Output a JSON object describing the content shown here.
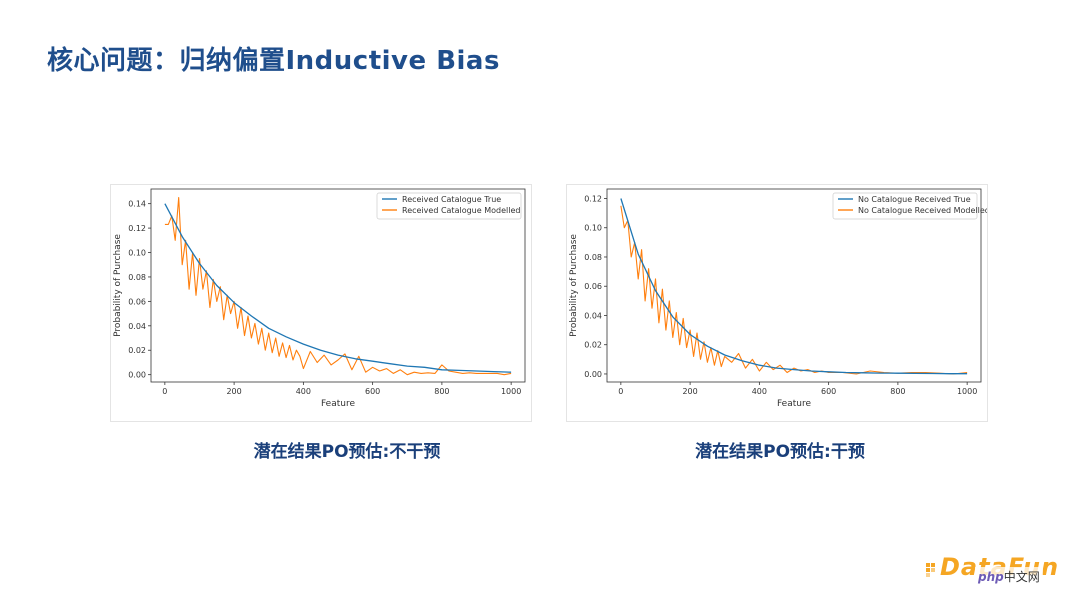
{
  "slide": {
    "title": "核心问题：归纳偏置Inductive Bias",
    "caption_left": "潜在结果PO预估:不干预",
    "caption_right": "潜在结果PO预估:干预",
    "logo_text": "DataFun",
    "watermark_php": "php",
    "watermark_cn": "中文网"
  },
  "colors": {
    "true_series": "#1f77b4",
    "modelled_series": "#ff7f0e",
    "title": "#1f4e8c",
    "caption": "#1a3f7a",
    "logo": "#f5a623"
  },
  "chart_data": [
    {
      "type": "line",
      "xlabel": "Feature",
      "ylabel": "Probability of Purchase",
      "xlim": [
        -40,
        1040
      ],
      "ylim": [
        -0.006,
        0.152
      ],
      "xticks": [
        0,
        200,
        400,
        600,
        800,
        1000
      ],
      "yticks": [
        0.0,
        0.02,
        0.04,
        0.06,
        0.08,
        0.1,
        0.12,
        0.14
      ],
      "ytick_labels": [
        "0.00",
        "0.02",
        "0.04",
        "0.06",
        "0.08",
        "0.10",
        "0.12",
        "0.14"
      ],
      "legend_position": "top-right",
      "series": [
        {
          "name": "Received Catalogue True",
          "color": "#1f77b4",
          "x": [
            0,
            50,
            100,
            150,
            200,
            250,
            300,
            350,
            400,
            450,
            500,
            550,
            600,
            650,
            700,
            750,
            800,
            850,
            900,
            950,
            1000
          ],
          "y": [
            0.14,
            0.113,
            0.091,
            0.073,
            0.059,
            0.048,
            0.038,
            0.031,
            0.025,
            0.02,
            0.016,
            0.013,
            0.011,
            0.009,
            0.007,
            0.006,
            0.004,
            0.0035,
            0.003,
            0.0025,
            0.002
          ]
        },
        {
          "name": "Received Catalogue Modelled",
          "color": "#ff7f0e",
          "x": [
            0,
            10,
            20,
            30,
            40,
            50,
            60,
            70,
            80,
            90,
            100,
            110,
            120,
            130,
            140,
            150,
            160,
            170,
            180,
            190,
            200,
            210,
            220,
            230,
            240,
            250,
            260,
            270,
            280,
            290,
            300,
            310,
            320,
            330,
            340,
            350,
            360,
            370,
            380,
            390,
            400,
            420,
            440,
            460,
            480,
            500,
            520,
            540,
            560,
            580,
            600,
            620,
            640,
            660,
            680,
            700,
            720,
            740,
            760,
            780,
            800,
            820,
            840,
            860,
            880,
            900,
            920,
            940,
            960,
            980,
            1000
          ],
          "y": [
            0.123,
            0.123,
            0.13,
            0.11,
            0.145,
            0.09,
            0.11,
            0.07,
            0.1,
            0.065,
            0.095,
            0.07,
            0.085,
            0.055,
            0.078,
            0.06,
            0.072,
            0.045,
            0.065,
            0.05,
            0.06,
            0.038,
            0.055,
            0.032,
            0.048,
            0.03,
            0.042,
            0.025,
            0.038,
            0.02,
            0.034,
            0.018,
            0.03,
            0.015,
            0.026,
            0.014,
            0.024,
            0.012,
            0.02,
            0.015,
            0.005,
            0.019,
            0.01,
            0.016,
            0.008,
            0.012,
            0.017,
            0.004,
            0.015,
            0.002,
            0.006,
            0.003,
            0.005,
            0.001,
            0.004,
            0.0,
            0.002,
            0.001,
            0.0015,
            0.001,
            0.008,
            0.003,
            0.002,
            0.001,
            0.0015,
            0.001,
            0.001,
            0.001,
            0.001,
            0.0,
            0.001
          ]
        }
      ]
    },
    {
      "type": "line",
      "xlabel": "Feature",
      "ylabel": "Probability of Purchase",
      "xlim": [
        -40,
        1040
      ],
      "ylim": [
        -0.0055,
        0.1265
      ],
      "xticks": [
        0,
        200,
        400,
        600,
        800,
        1000
      ],
      "yticks": [
        0.0,
        0.02,
        0.04,
        0.06,
        0.08,
        0.1,
        0.12
      ],
      "ytick_labels": [
        "0.00",
        "0.02",
        "0.04",
        "0.06",
        "0.08",
        "0.10",
        "0.12"
      ],
      "legend_position": "top-right",
      "series": [
        {
          "name": "No Catalogue Received True",
          "color": "#1f77b4",
          "x": [
            0,
            50,
            100,
            150,
            200,
            250,
            300,
            350,
            400,
            450,
            500,
            550,
            600,
            650,
            700,
            750,
            800,
            850,
            900,
            950,
            1000
          ],
          "y": [
            0.12,
            0.082,
            0.057,
            0.039,
            0.027,
            0.019,
            0.013,
            0.009,
            0.006,
            0.004,
            0.003,
            0.002,
            0.0015,
            0.001,
            0.0008,
            0.0006,
            0.0005,
            0.0004,
            0.0003,
            0.0002,
            0.0002
          ]
        },
        {
          "name": "No Catalogue Received Modelled",
          "color": "#ff7f0e",
          "x": [
            0,
            10,
            20,
            30,
            40,
            50,
            60,
            70,
            80,
            90,
            100,
            110,
            120,
            130,
            140,
            150,
            160,
            170,
            180,
            190,
            200,
            210,
            220,
            230,
            240,
            250,
            260,
            270,
            280,
            290,
            300,
            320,
            340,
            360,
            380,
            400,
            420,
            440,
            460,
            480,
            500,
            520,
            540,
            560,
            580,
            600,
            640,
            680,
            720,
            760,
            800,
            840,
            880,
            920,
            960,
            1000
          ],
          "y": [
            0.115,
            0.1,
            0.105,
            0.08,
            0.09,
            0.065,
            0.085,
            0.05,
            0.072,
            0.045,
            0.065,
            0.035,
            0.058,
            0.03,
            0.05,
            0.025,
            0.042,
            0.02,
            0.038,
            0.018,
            0.03,
            0.012,
            0.028,
            0.01,
            0.022,
            0.008,
            0.018,
            0.006,
            0.016,
            0.005,
            0.012,
            0.008,
            0.014,
            0.004,
            0.01,
            0.002,
            0.008,
            0.003,
            0.006,
            0.001,
            0.004,
            0.002,
            0.003,
            0.001,
            0.002,
            0.001,
            0.001,
            0.0,
            0.002,
            0.001,
            0.0005,
            0.001,
            0.001,
            0.0005,
            0.0,
            0.001
          ]
        }
      ]
    }
  ]
}
